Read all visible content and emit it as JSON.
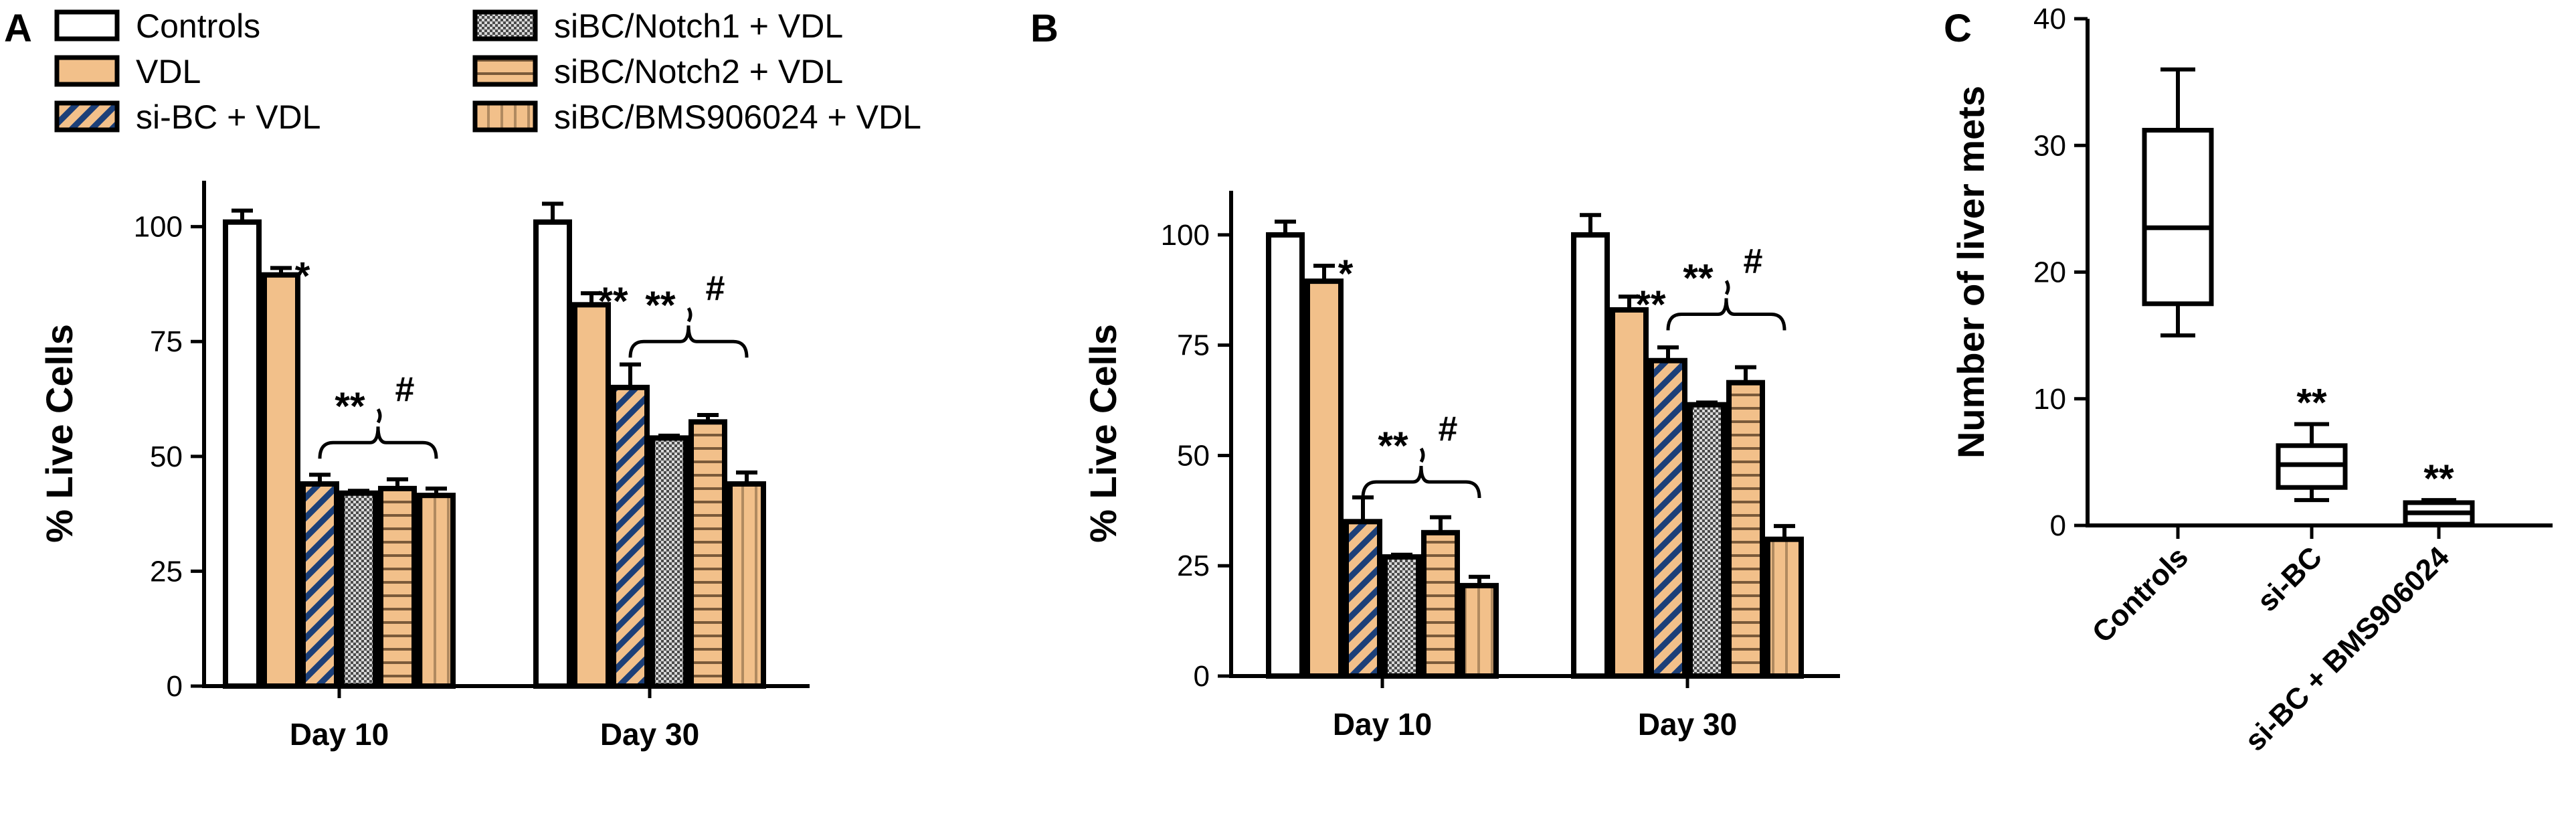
{
  "colors": {
    "white": "#ffffff",
    "orange": "#f2c08a",
    "navy": "#1c3f78",
    "gray": "#6a6a6a",
    "black": "#000000"
  },
  "legend": [
    {
      "label": "Controls",
      "pattern": "white"
    },
    {
      "label": "VDL",
      "pattern": "orange"
    },
    {
      "label": "si-BC + VDL",
      "pattern": "diag"
    },
    {
      "label": "siBC/Notch1 + VDL",
      "pattern": "check"
    },
    {
      "label": "siBC/Notch2 + VDL",
      "pattern": "hstripe"
    },
    {
      "label": "siBC/BMS906024 + VDL",
      "pattern": "vstripe"
    }
  ],
  "chart_data": [
    {
      "panel": "A",
      "type": "bar",
      "ylabel": "% Live Cells",
      "ylim": [
        0,
        110
      ],
      "yticks": [
        0,
        25,
        50,
        75,
        100
      ],
      "categories": [
        "Day 10",
        "Day 30"
      ],
      "series": [
        {
          "name": "Controls",
          "values": [
            101,
            101
          ],
          "errors": [
            2.5,
            4
          ]
        },
        {
          "name": "VDL",
          "values": [
            89.5,
            83
          ],
          "errors": [
            1.5,
            2.5
          ]
        },
        {
          "name": "si-BC + VDL",
          "values": [
            44,
            65
          ],
          "errors": [
            2,
            5
          ]
        },
        {
          "name": "siBC/Notch1 + VDL",
          "values": [
            42,
            54
          ],
          "errors": [
            0.5,
            0.5
          ]
        },
        {
          "name": "siBC/Notch2 + VDL",
          "values": [
            43,
            57.5
          ],
          "errors": [
            2,
            1.5
          ]
        },
        {
          "name": "siBC/BMS906024 + VDL",
          "values": [
            41.5,
            44
          ],
          "errors": [
            1.5,
            2.5
          ]
        }
      ],
      "annotations": [
        {
          "text": "*",
          "category": 0,
          "series": 1
        },
        {
          "text": "**",
          "category": 1,
          "series": 1
        }
      ],
      "brackets": [
        {
          "category": 0,
          "from": 2,
          "to": 5,
          "level": 53,
          "label": "**",
          "hash": "#"
        },
        {
          "category": 1,
          "from": 2,
          "to": 5,
          "level": 75,
          "label": "**",
          "hash": "#"
        }
      ]
    },
    {
      "panel": "B",
      "type": "bar",
      "ylabel": "% Live Cells",
      "ylim": [
        0,
        110
      ],
      "yticks": [
        0,
        25,
        50,
        75,
        100
      ],
      "categories": [
        "Day 10",
        "Day 30"
      ],
      "series": [
        {
          "name": "Controls",
          "values": [
            100,
            100
          ],
          "errors": [
            3,
            4.5
          ]
        },
        {
          "name": "VDL",
          "values": [
            89.5,
            83
          ],
          "errors": [
            3.5,
            3
          ]
        },
        {
          "name": "si-BC + VDL",
          "values": [
            35,
            71.5
          ],
          "errors": [
            5.5,
            3
          ]
        },
        {
          "name": "siBC/Notch1 + VDL",
          "values": [
            27,
            61.5
          ],
          "errors": [
            0.5,
            0.5
          ]
        },
        {
          "name": "siBC/Notch2 + VDL",
          "values": [
            32.5,
            66.5
          ],
          "errors": [
            3.5,
            3.5
          ]
        },
        {
          "name": "siBC/BMS906024 + VDL",
          "values": [
            20.5,
            31
          ],
          "errors": [
            2,
            3
          ]
        }
      ],
      "annotations": [
        {
          "text": "*",
          "category": 0,
          "series": 1
        },
        {
          "text": "**",
          "category": 1,
          "series": 1
        }
      ],
      "brackets": [
        {
          "category": 0,
          "from": 2,
          "to": 5,
          "level": 44,
          "label": "**",
          "hash": "#"
        },
        {
          "category": 1,
          "from": 2,
          "to": 5,
          "level": 82,
          "label": "**",
          "hash": "#"
        }
      ]
    },
    {
      "panel": "C",
      "type": "box",
      "ylabel": "Number of liver mets",
      "ylim": [
        0,
        40
      ],
      "yticks": [
        0,
        10,
        20,
        30,
        40
      ],
      "categories": [
        "Controls",
        "si-BC",
        "si-BC + BMS906024"
      ],
      "boxes": [
        {
          "min": 15,
          "q1": 17.5,
          "median": 23.5,
          "q3": 31.2,
          "max": 36,
          "annotation": ""
        },
        {
          "min": 2,
          "q1": 3,
          "median": 4.8,
          "q3": 6.3,
          "max": 8,
          "annotation": "**"
        },
        {
          "min": 0,
          "q1": 0.1,
          "median": 1,
          "q3": 1.8,
          "max": 2,
          "annotation": "**"
        }
      ]
    }
  ]
}
